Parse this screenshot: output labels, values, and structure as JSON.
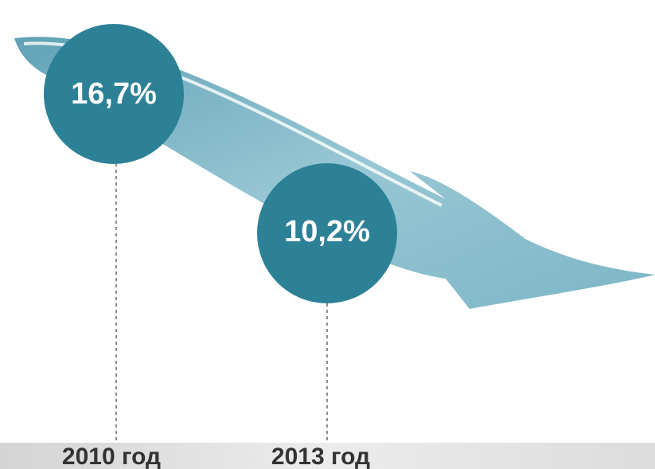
{
  "items": [
    {
      "label": "16,7%",
      "year": "2010 год"
    },
    {
      "label": "10,2%",
      "year": "2013 год"
    }
  ]
}
